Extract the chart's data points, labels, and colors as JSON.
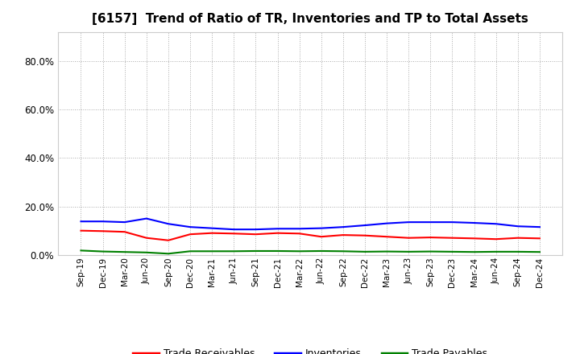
{
  "title": "[6157]  Trend of Ratio of TR, Inventories and TP to Total Assets",
  "x_labels": [
    "Sep-19",
    "Dec-19",
    "Mar-20",
    "Jun-20",
    "Sep-20",
    "Dec-20",
    "Mar-21",
    "Jun-21",
    "Sep-21",
    "Dec-21",
    "Mar-22",
    "Jun-22",
    "Sep-22",
    "Dec-22",
    "Mar-23",
    "Jun-23",
    "Sep-23",
    "Dec-23",
    "Mar-24",
    "Jun-24",
    "Sep-24",
    "Dec-24"
  ],
  "trade_receivables": [
    0.1,
    0.098,
    0.095,
    0.07,
    0.06,
    0.085,
    0.09,
    0.088,
    0.085,
    0.09,
    0.088,
    0.075,
    0.082,
    0.08,
    0.075,
    0.07,
    0.072,
    0.07,
    0.068,
    0.065,
    0.07,
    0.068
  ],
  "inventories": [
    0.138,
    0.138,
    0.135,
    0.15,
    0.128,
    0.115,
    0.11,
    0.105,
    0.105,
    0.108,
    0.108,
    0.11,
    0.115,
    0.122,
    0.13,
    0.135,
    0.135,
    0.135,
    0.132,
    0.128,
    0.118,
    0.115
  ],
  "trade_payables": [
    0.018,
    0.014,
    0.012,
    0.01,
    0.005,
    0.015,
    0.015,
    0.015,
    0.016,
    0.016,
    0.015,
    0.016,
    0.015,
    0.013,
    0.014,
    0.013,
    0.014,
    0.013,
    0.012,
    0.013,
    0.013,
    0.012
  ],
  "tr_color": "#ff0000",
  "inv_color": "#0000ff",
  "tp_color": "#008000",
  "legend_labels": [
    "Trade Receivables",
    "Inventories",
    "Trade Payables"
  ],
  "bg_color": "#ffffff",
  "plot_bg_color": "#ffffff",
  "grid_color": "#aaaaaa",
  "line_width": 1.5,
  "title_fontsize": 11
}
